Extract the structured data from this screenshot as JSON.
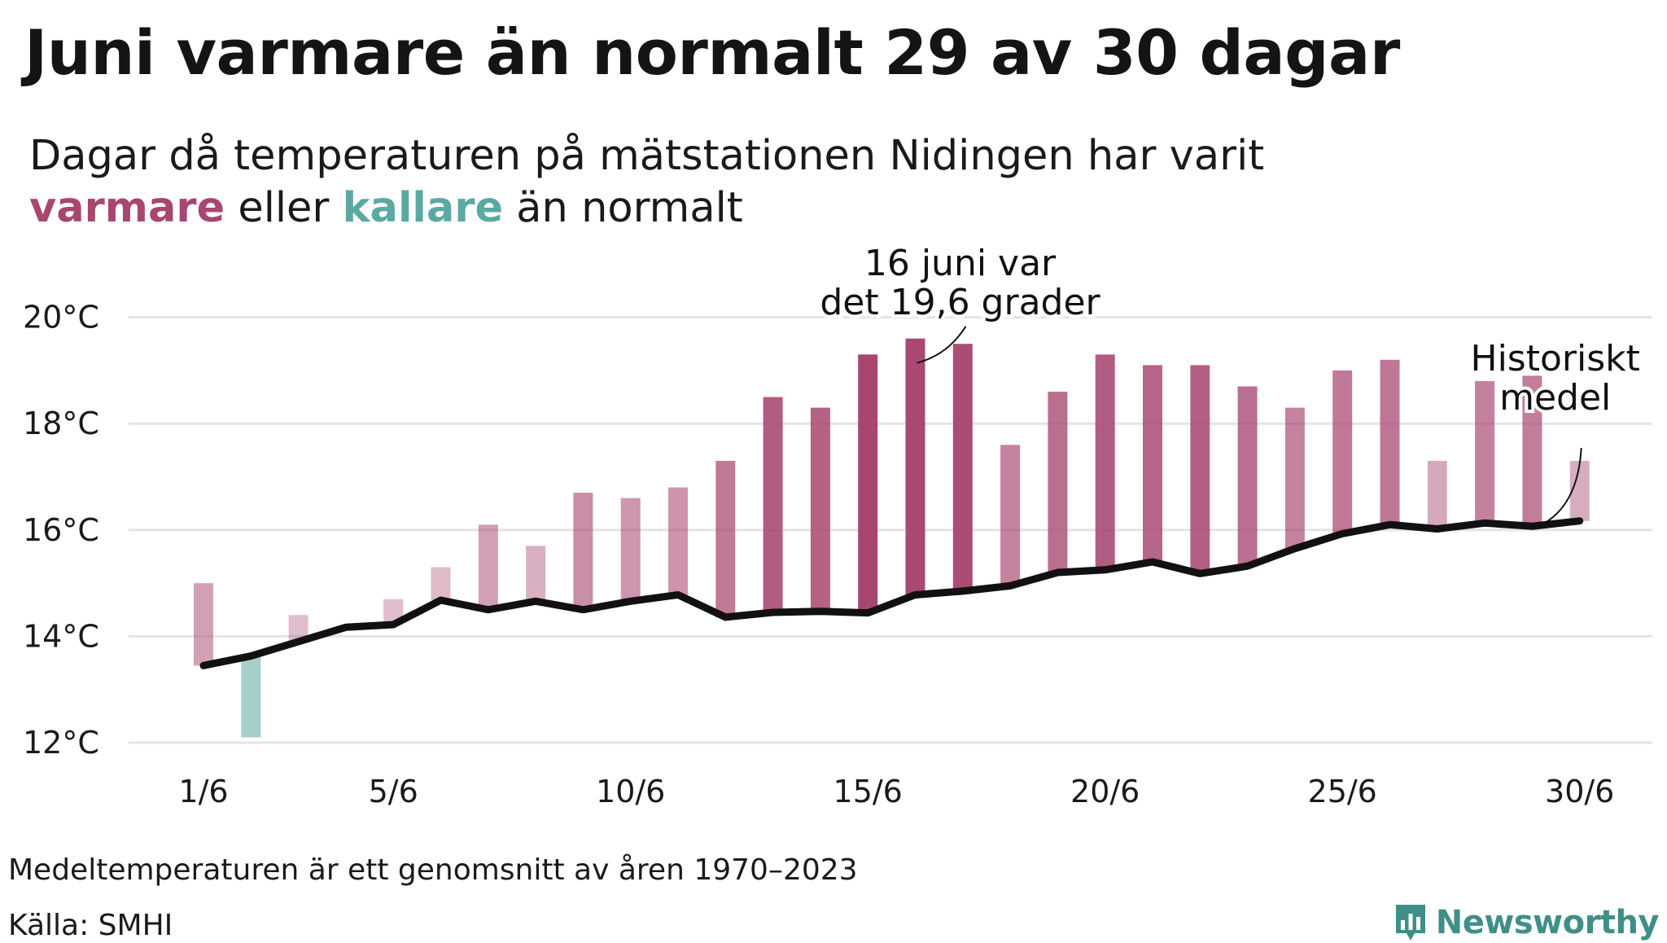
{
  "title": "Juni varmare än normalt 29 av 30 dagar",
  "subtitle": {
    "line1": "Dagar då temperaturen på mätstationen Nidingen har varit",
    "warm_word": "varmare",
    "middle": "eller",
    "cold_word": "kallare",
    "end": "än normalt"
  },
  "colors": {
    "warm": "#a84670",
    "cold": "#5aa9a2",
    "mean_line": "#111111",
    "brand": "#3f8f88"
  },
  "chart_data": {
    "type": "bar",
    "y_tick_labels": [
      "12°C",
      "14°C",
      "16°C",
      "18°C",
      "20°C"
    ],
    "y_ticks": [
      12,
      14,
      16,
      18,
      20
    ],
    "ylim": [
      11.6,
      20.7
    ],
    "x_tick_labels": [
      "1/6",
      "5/6",
      "10/6",
      "15/6",
      "20/6",
      "25/6",
      "30/6"
    ],
    "x_ticks": [
      1,
      5,
      10,
      15,
      20,
      25,
      30
    ],
    "days": [
      1,
      2,
      3,
      4,
      5,
      6,
      7,
      8,
      9,
      10,
      11,
      12,
      13,
      14,
      15,
      16,
      17,
      18,
      19,
      20,
      21,
      22,
      23,
      24,
      25,
      26,
      27,
      28,
      29,
      30
    ],
    "temperature": [
      15.0,
      12.1,
      14.4,
      14.2,
      14.7,
      15.3,
      16.1,
      15.7,
      16.7,
      16.6,
      16.8,
      17.3,
      18.5,
      18.3,
      19.3,
      19.6,
      19.5,
      17.6,
      18.6,
      19.3,
      19.1,
      19.1,
      18.7,
      18.3,
      19.0,
      19.2,
      17.3,
      18.8,
      18.9,
      17.3
    ],
    "historical_mean": [
      13.45,
      13.63,
      13.9,
      14.17,
      14.22,
      14.68,
      14.5,
      14.66,
      14.5,
      14.66,
      14.78,
      14.36,
      14.45,
      14.47,
      14.44,
      14.78,
      14.85,
      14.95,
      15.2,
      15.25,
      15.4,
      15.18,
      15.32,
      15.65,
      15.93,
      16.1,
      16.02,
      16.13,
      16.07,
      16.17
    ],
    "series": [
      {
        "values_key": "temperature"
      },
      {
        "name": "Historiskt medel",
        "values_key": "historical_mean"
      }
    ],
    "annotations": [
      {
        "day": 16,
        "lines": [
          "16 juni var",
          "det 19,6 grader"
        ]
      },
      {
        "day": 30,
        "lines": [
          "Historiskt",
          "medel"
        ]
      }
    ],
    "grid": true
  },
  "footnote": "Medeltemperaturen är ett genomsnitt av åren 1970–2023",
  "source": "Källa: SMHI",
  "brand": "Newsworthy"
}
